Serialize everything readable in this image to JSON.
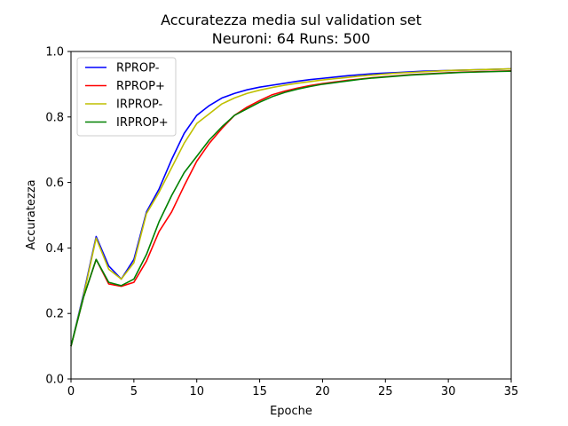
{
  "chart_data": {
    "type": "line",
    "title": "Accuratezza media sul validation set",
    "subtitle": "Neuroni: 64 Runs: 500",
    "xlabel": "Epoche",
    "ylabel": "Accuratezza",
    "xlim": [
      0,
      35
    ],
    "ylim": [
      0,
      1.0
    ],
    "xticks": [
      "0",
      "5",
      "10",
      "15",
      "20",
      "25",
      "30",
      "35"
    ],
    "yticks": [
      "0.0",
      "0.2",
      "0.4",
      "0.6",
      "0.8",
      "1.0"
    ],
    "grid": false,
    "legend_position": "top-left",
    "x": [
      0,
      1,
      2,
      3,
      4,
      5,
      6,
      7,
      8,
      9,
      10,
      11,
      12,
      13,
      14,
      15,
      16,
      17,
      18,
      19,
      20,
      21,
      22,
      23,
      24,
      25,
      26,
      27,
      28,
      29,
      30,
      31,
      32,
      33,
      34,
      35
    ],
    "series": [
      {
        "name": "RPROP-",
        "color": "#0000ff",
        "values": [
          0.1,
          0.26,
          0.435,
          0.345,
          0.305,
          0.365,
          0.51,
          0.58,
          0.67,
          0.75,
          0.805,
          0.835,
          0.858,
          0.872,
          0.883,
          0.891,
          0.897,
          0.903,
          0.909,
          0.914,
          0.918,
          0.922,
          0.926,
          0.929,
          0.932,
          0.934,
          0.936,
          0.938,
          0.94,
          0.941,
          0.942,
          0.943,
          0.944,
          0.945,
          0.946,
          0.947
        ]
      },
      {
        "name": "RPROP+",
        "color": "#ff0000",
        "values": [
          0.1,
          0.25,
          0.365,
          0.29,
          0.283,
          0.295,
          0.36,
          0.45,
          0.51,
          0.59,
          0.665,
          0.72,
          0.765,
          0.805,
          0.83,
          0.85,
          0.868,
          0.879,
          0.888,
          0.896,
          0.902,
          0.907,
          0.912,
          0.916,
          0.92,
          0.923,
          0.926,
          0.929,
          0.931,
          0.933,
          0.935,
          0.937,
          0.938,
          0.939,
          0.94,
          0.941
        ]
      },
      {
        "name": "IRPROP-",
        "color": "#bfbf00",
        "values": [
          0.1,
          0.255,
          0.43,
          0.335,
          0.305,
          0.355,
          0.505,
          0.57,
          0.645,
          0.72,
          0.78,
          0.81,
          0.84,
          0.858,
          0.872,
          0.882,
          0.89,
          0.897,
          0.903,
          0.908,
          0.913,
          0.917,
          0.921,
          0.925,
          0.928,
          0.931,
          0.934,
          0.936,
          0.938,
          0.94,
          0.942,
          0.943,
          0.944,
          0.945,
          0.946,
          0.947
        ]
      },
      {
        "name": "IRPROP+",
        "color": "#008000",
        "values": [
          0.1,
          0.25,
          0.365,
          0.295,
          0.285,
          0.305,
          0.38,
          0.48,
          0.56,
          0.63,
          0.68,
          0.73,
          0.77,
          0.805,
          0.825,
          0.845,
          0.862,
          0.875,
          0.885,
          0.893,
          0.9,
          0.905,
          0.91,
          0.915,
          0.919,
          0.922,
          0.925,
          0.928,
          0.93,
          0.932,
          0.934,
          0.936,
          0.937,
          0.938,
          0.939,
          0.94
        ]
      }
    ]
  }
}
